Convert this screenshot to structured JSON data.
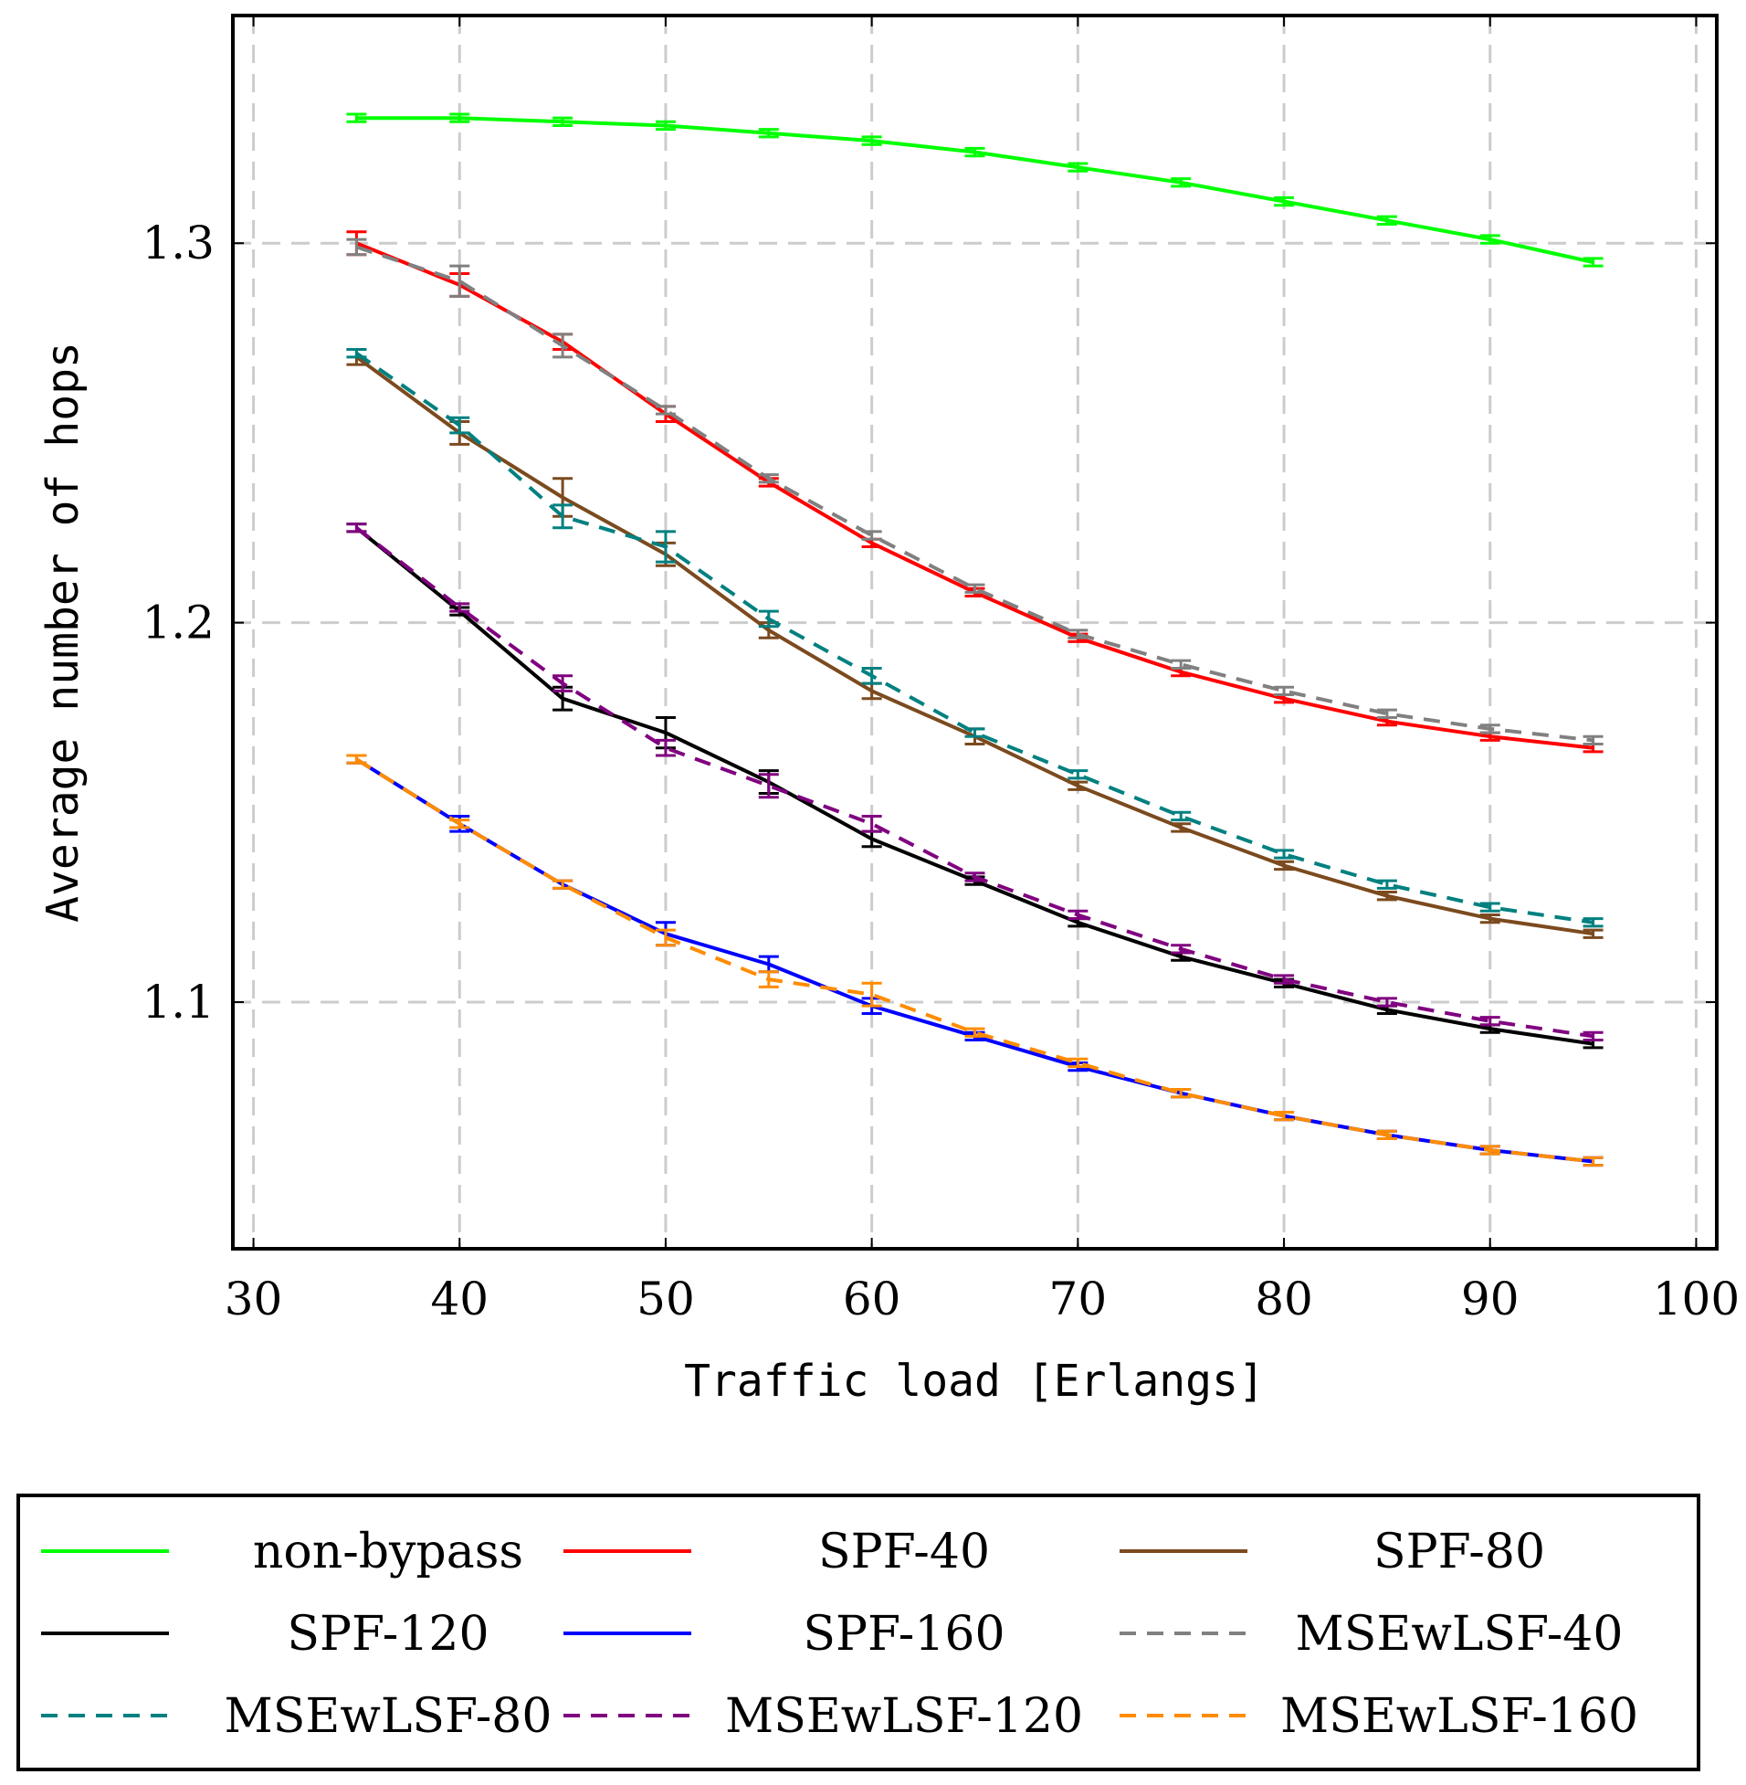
{
  "chart_data": {
    "type": "line",
    "xlabel": "Traffic load [Erlangs]",
    "ylabel": "Average number of hops",
    "xlim": [
      29,
      101
    ],
    "ylim": [
      1.035,
      1.36
    ],
    "xticks": [
      30,
      40,
      50,
      60,
      70,
      80,
      90,
      100
    ],
    "yticks": [
      1.1,
      1.2,
      1.3
    ],
    "ytick_labels": [
      "1.1",
      "1.2",
      "1.3"
    ],
    "grid": true,
    "x": [
      35,
      40,
      45,
      50,
      55,
      60,
      65,
      70,
      75,
      80,
      85,
      90,
      95
    ],
    "series": [
      {
        "name": "non-bypass",
        "color": "#00ff00",
        "dash": "solid",
        "values": [
          1.333,
          1.333,
          1.332,
          1.331,
          1.329,
          1.327,
          1.324,
          1.32,
          1.316,
          1.311,
          1.306,
          1.301,
          1.295
        ],
        "errors": [
          0.001,
          0.001,
          0.001,
          0.001,
          0.001,
          0.001,
          0.001,
          0.001,
          0.001,
          0.001,
          0.001,
          0.001,
          0.001
        ]
      },
      {
        "name": "SPF-40",
        "color": "#ff0000",
        "dash": "solid",
        "values": [
          1.3,
          1.289,
          1.274,
          1.255,
          1.237,
          1.221,
          1.208,
          1.196,
          1.187,
          1.18,
          1.174,
          1.17,
          1.167
        ],
        "errors": [
          0.003,
          0.003,
          0.002,
          0.002,
          0.001,
          0.001,
          0.001,
          0.001,
          0.001,
          0.001,
          0.001,
          0.001,
          0.001
        ]
      },
      {
        "name": "SPF-80",
        "color": "#7b4a1e",
        "dash": "solid",
        "values": [
          1.27,
          1.25,
          1.233,
          1.218,
          1.198,
          1.182,
          1.17,
          1.157,
          1.146,
          1.136,
          1.128,
          1.122,
          1.118
        ],
        "errors": [
          0.002,
          0.003,
          0.005,
          0.003,
          0.002,
          0.002,
          0.002,
          0.001,
          0.001,
          0.001,
          0.001,
          0.001,
          0.001
        ]
      },
      {
        "name": "SPF-120",
        "color": "#000000",
        "dash": "solid",
        "values": [
          1.225,
          1.203,
          1.18,
          1.171,
          1.158,
          1.143,
          1.132,
          1.121,
          1.112,
          1.105,
          1.098,
          1.093,
          1.089
        ],
        "errors": [
          0.001,
          0.001,
          0.003,
          0.004,
          0.003,
          0.002,
          0.001,
          0.001,
          0.001,
          0.001,
          0.001,
          0.001,
          0.001
        ]
      },
      {
        "name": "SPF-160",
        "color": "#0000ff",
        "dash": "solid",
        "values": [
          1.164,
          1.147,
          1.131,
          1.118,
          1.11,
          1.099,
          1.091,
          1.083,
          1.076,
          1.07,
          1.065,
          1.061,
          1.058
        ],
        "errors": [
          0.001,
          0.002,
          0.001,
          0.003,
          0.002,
          0.002,
          0.001,
          0.001,
          0.001,
          0.001,
          0.001,
          0.001,
          0.001
        ]
      },
      {
        "name": "MSEwLSF-40",
        "color": "#808080",
        "dash": "dashed",
        "values": [
          1.299,
          1.29,
          1.273,
          1.256,
          1.238,
          1.223,
          1.209,
          1.197,
          1.189,
          1.182,
          1.176,
          1.172,
          1.169
        ],
        "errors": [
          0.002,
          0.004,
          0.003,
          0.001,
          0.001,
          0.001,
          0.001,
          0.001,
          0.001,
          0.001,
          0.001,
          0.001,
          0.001
        ]
      },
      {
        "name": "MSEwLSF-80",
        "color": "#008080",
        "dash": "dashed",
        "values": [
          1.271,
          1.252,
          1.228,
          1.22,
          1.201,
          1.186,
          1.171,
          1.16,
          1.149,
          1.139,
          1.131,
          1.125,
          1.121
        ],
        "errors": [
          0.001,
          0.002,
          0.003,
          0.004,
          0.002,
          0.002,
          0.001,
          0.001,
          0.001,
          0.001,
          0.001,
          0.001,
          0.001
        ]
      },
      {
        "name": "MSEwLSF-120",
        "color": "#800080",
        "dash": "dashed",
        "values": [
          1.225,
          1.204,
          1.184,
          1.167,
          1.157,
          1.147,
          1.133,
          1.123,
          1.114,
          1.106,
          1.1,
          1.095,
          1.091
        ],
        "errors": [
          0.001,
          0.001,
          0.002,
          0.002,
          0.003,
          0.002,
          0.001,
          0.001,
          0.001,
          0.001,
          0.001,
          0.001,
          0.001
        ]
      },
      {
        "name": "MSEwLSF-160",
        "color": "#ff8c00",
        "dash": "dashed",
        "values": [
          1.164,
          1.147,
          1.131,
          1.117,
          1.106,
          1.102,
          1.092,
          1.084,
          1.076,
          1.07,
          1.065,
          1.061,
          1.058
        ],
        "errors": [
          0.001,
          0.001,
          0.001,
          0.002,
          0.002,
          0.003,
          0.001,
          0.001,
          0.001,
          0.001,
          0.001,
          0.001,
          0.001
        ]
      }
    ],
    "legend_position": "below",
    "legend_columns": 3
  }
}
